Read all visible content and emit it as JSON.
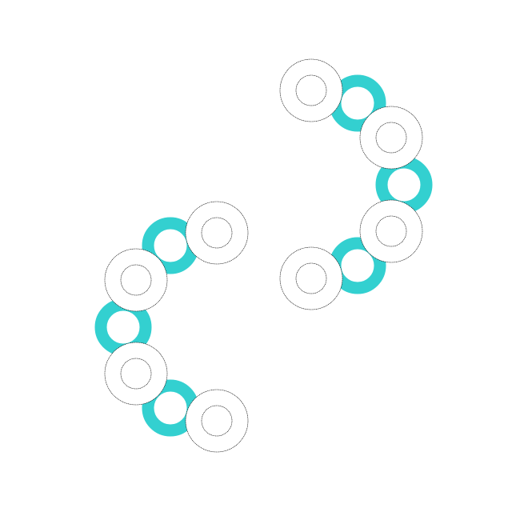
{
  "colors": {
    "background": "#ffffff",
    "teal": "#33d0d0",
    "outline": "#000000",
    "fill": "#ffffff"
  },
  "groups": [
    {
      "name": "right-bracket-arc",
      "rings": [
        "white",
        "teal",
        "white",
        "teal",
        "white",
        "teal",
        "white"
      ]
    },
    {
      "name": "left-bracket-arc",
      "rings": [
        "white",
        "teal",
        "white",
        "teal",
        "white",
        "teal",
        "white"
      ]
    }
  ]
}
